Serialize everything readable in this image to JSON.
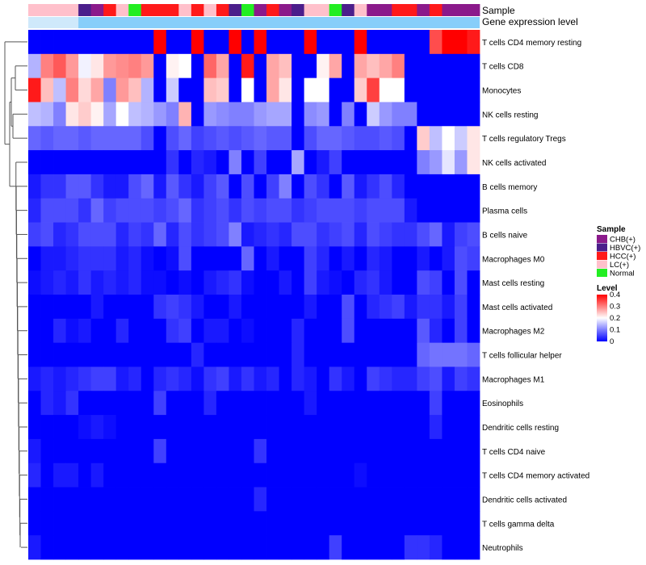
{
  "chart_data": {
    "type": "heatmap",
    "title": "",
    "annotation_tracks": [
      "Sample",
      "Gene expression level"
    ],
    "sample_groups": {
      "CHB(+)": "#8b1a8b",
      "HBVC(+)": "#4b1e8b",
      "HCC(+)": "#ff1a1a",
      "LC(+)": "#ffc0cb",
      "Normal": "#22ee22"
    },
    "sample_annotation": [
      "LC(+)",
      "LC(+)",
      "LC(+)",
      "LC(+)",
      "HBVC(+)",
      "CHB(+)",
      "HCC(+)",
      "LC(+)",
      "Normal",
      "HCC(+)",
      "HCC(+)",
      "HCC(+)",
      "LC(+)",
      "HCC(+)",
      "LC(+)",
      "HCC(+)",
      "HBVC(+)",
      "Normal",
      "CHB(+)",
      "HCC(+)",
      "CHB(+)",
      "HBVC(+)",
      "LC(+)",
      "LC(+)",
      "Normal",
      "HBVC(+)",
      "LC(+)",
      "CHB(+)",
      "CHB(+)",
      "HCC(+)",
      "HCC(+)",
      "CHB(+)",
      "HCC(+)",
      "CHB(+)",
      "CHB(+)",
      "CHB(+)"
    ],
    "level_color": "#87cefa",
    "row_labels": [
      "T cells CD4 memory resting",
      "T cells CD8",
      "Monocytes",
      "NK cells resting",
      "T cells regulatory  Tregs",
      "NK cells activated",
      "B cells memory",
      "Plasma cells",
      "B cells naive",
      "Macrophages M0",
      "Mast cells resting",
      "Mast cells activated",
      "Macrophages M2",
      "T cells follicular helper",
      "Macrophages M1",
      "Eosinophils",
      "Dendritic cells resting",
      "T cells CD4 naive",
      "T cells CD4 memory activated",
      "Dendritic cells activated",
      "T cells gamma delta",
      "Neutrophils"
    ],
    "values": [
      [
        0.0,
        0.0,
        0.0,
        0.0,
        0.0,
        0.0,
        0.0,
        0.0,
        0.0,
        0.0,
        0.4,
        0.0,
        0.0,
        0.4,
        0.0,
        0.0,
        0.4,
        0.0,
        0.4,
        0.0,
        0.0,
        0.0,
        0.4,
        0.0,
        0.0,
        0.0,
        0.4,
        0.0,
        0.0,
        0.0,
        0.0,
        0.0,
        0.34,
        0.4,
        0.4,
        0.38
      ],
      [
        0.14,
        0.3,
        0.33,
        0.28,
        0.19,
        0.22,
        0.28,
        0.29,
        0.3,
        0.28,
        0.0,
        0.21,
        0.2,
        0.0,
        0.32,
        0.27,
        0.0,
        0.38,
        0.0,
        0.27,
        0.25,
        0.0,
        0.0,
        0.21,
        0.27,
        0.0,
        0.27,
        0.25,
        0.27,
        0.3,
        0.0,
        0.0,
        0.0,
        0.0,
        0.0,
        0.0
      ],
      [
        0.38,
        0.25,
        0.15,
        0.3,
        0.23,
        0.27,
        0.1,
        0.28,
        0.25,
        0.14,
        0.0,
        0.16,
        0.0,
        0.0,
        0.25,
        0.24,
        0.0,
        0.2,
        0.0,
        0.27,
        0.22,
        0.0,
        0.2,
        0.2,
        0.0,
        0.0,
        0.24,
        0.35,
        0.2,
        0.2,
        0.0,
        0.0,
        0.0,
        0.0,
        0.0,
        0.0
      ],
      [
        0.15,
        0.14,
        0.1,
        0.22,
        0.24,
        0.21,
        0.13,
        0.2,
        0.15,
        0.14,
        0.12,
        0.1,
        0.26,
        0.0,
        0.12,
        0.11,
        0.1,
        0.1,
        0.12,
        0.13,
        0.13,
        0.0,
        0.11,
        0.12,
        0.0,
        0.1,
        0.0,
        0.16,
        0.12,
        0.1,
        0.1,
        0.0,
        0.0,
        0.0,
        0.0,
        0.0
      ],
      [
        0.08,
        0.07,
        0.08,
        0.08,
        0.07,
        0.08,
        0.08,
        0.08,
        0.08,
        0.06,
        0.0,
        0.06,
        0.08,
        0.05,
        0.06,
        0.07,
        0.06,
        0.07,
        0.08,
        0.07,
        0.07,
        0.0,
        0.06,
        0.08,
        0.08,
        0.07,
        0.06,
        0.06,
        0.07,
        0.06,
        0.0,
        0.24,
        0.15,
        0.2,
        0.16,
        0.22
      ],
      [
        0.0,
        0.0,
        0.0,
        0.0,
        0.0,
        0.0,
        0.0,
        0.0,
        0.0,
        0.0,
        0.0,
        0.04,
        0.0,
        0.03,
        0.02,
        0.0,
        0.1,
        0.0,
        0.05,
        0.0,
        0.0,
        0.13,
        0.0,
        0.02,
        0.05,
        0.0,
        0.0,
        0.0,
        0.0,
        0.0,
        0.0,
        0.1,
        0.12,
        0.18,
        0.12,
        0.22
      ],
      [
        0.02,
        0.04,
        0.04,
        0.07,
        0.07,
        0.04,
        0.02,
        0.02,
        0.06,
        0.08,
        0.02,
        0.07,
        0.04,
        0.02,
        0.05,
        0.07,
        0.0,
        0.06,
        0.0,
        0.05,
        0.1,
        0.0,
        0.06,
        0.04,
        0.0,
        0.07,
        0.02,
        0.04,
        0.06,
        0.03,
        0.0,
        0.0,
        0.0,
        0.0,
        0.0,
        0.0
      ],
      [
        0.03,
        0.06,
        0.06,
        0.06,
        0.04,
        0.08,
        0.05,
        0.06,
        0.06,
        0.06,
        0.05,
        0.06,
        0.08,
        0.04,
        0.05,
        0.06,
        0.04,
        0.06,
        0.05,
        0.06,
        0.06,
        0.04,
        0.05,
        0.06,
        0.06,
        0.06,
        0.05,
        0.06,
        0.06,
        0.06,
        0.02,
        0.0,
        0.0,
        0.0,
        0.0,
        0.0
      ],
      [
        0.05,
        0.06,
        0.03,
        0.04,
        0.06,
        0.06,
        0.06,
        0.03,
        0.05,
        0.04,
        0.08,
        0.03,
        0.06,
        0.04,
        0.05,
        0.06,
        0.1,
        0.02,
        0.03,
        0.04,
        0.03,
        0.06,
        0.06,
        0.04,
        0.05,
        0.06,
        0.03,
        0.06,
        0.05,
        0.04,
        0.04,
        0.06,
        0.08,
        0.02,
        0.05,
        0.06
      ],
      [
        0.0,
        0.02,
        0.02,
        0.03,
        0.04,
        0.04,
        0.04,
        0.02,
        0.03,
        0.01,
        0.0,
        0.01,
        0.06,
        0.0,
        0.0,
        0.0,
        0.0,
        0.08,
        0.0,
        0.02,
        0.0,
        0.0,
        0.05,
        0.03,
        0.0,
        0.02,
        0.0,
        0.03,
        0.02,
        0.0,
        0.0,
        0.02,
        0.0,
        0.02,
        0.06,
        0.05
      ],
      [
        0.01,
        0.02,
        0.03,
        0.02,
        0.04,
        0.02,
        0.03,
        0.02,
        0.03,
        0.01,
        0.01,
        0.0,
        0.01,
        0.0,
        0.02,
        0.03,
        0.04,
        0.01,
        0.0,
        0.0,
        0.02,
        0.0,
        0.05,
        0.02,
        0.01,
        0.0,
        0.03,
        0.04,
        0.02,
        0.0,
        0.0,
        0.06,
        0.05,
        0.0,
        0.06,
        0.0
      ],
      [
        0.0,
        0.0,
        0.0,
        0.0,
        0.0,
        0.02,
        0.0,
        0.0,
        0.0,
        0.0,
        0.04,
        0.05,
        0.04,
        0.02,
        0.0,
        0.0,
        0.02,
        0.0,
        0.0,
        0.0,
        0.0,
        0.0,
        0.02,
        0.0,
        0.0,
        0.06,
        0.0,
        0.03,
        0.04,
        0.05,
        0.02,
        0.04,
        0.04,
        0.02,
        0.05,
        0.0
      ],
      [
        0.0,
        0.0,
        0.03,
        0.01,
        0.02,
        0.0,
        0.0,
        0.03,
        0.0,
        0.0,
        0.0,
        0.04,
        0.05,
        0.0,
        0.02,
        0.02,
        0.0,
        0.01,
        0.0,
        0.0,
        0.0,
        0.03,
        0.0,
        0.0,
        0.0,
        0.06,
        0.0,
        0.0,
        0.0,
        0.0,
        0.0,
        0.07,
        0.03,
        0.0,
        0.05,
        0.0
      ],
      [
        0.0,
        0.0,
        0.0,
        0.0,
        0.0,
        0.0,
        0.0,
        0.0,
        0.0,
        0.0,
        0.0,
        0.0,
        0.0,
        0.03,
        0.0,
        0.0,
        0.0,
        0.0,
        0.0,
        0.0,
        0.0,
        0.03,
        0.0,
        0.0,
        0.0,
        0.0,
        0.0,
        0.0,
        0.0,
        0.0,
        0.0,
        0.08,
        0.09,
        0.09,
        0.09,
        0.08
      ],
      [
        0.02,
        0.03,
        0.02,
        0.03,
        0.04,
        0.05,
        0.05,
        0.02,
        0.03,
        0.0,
        0.03,
        0.04,
        0.03,
        0.01,
        0.04,
        0.05,
        0.02,
        0.04,
        0.02,
        0.03,
        0.0,
        0.03,
        0.02,
        0.0,
        0.04,
        0.02,
        0.0,
        0.05,
        0.04,
        0.03,
        0.03,
        0.05,
        0.06,
        0.02,
        0.05,
        0.04
      ],
      [
        0.0,
        0.03,
        0.02,
        0.04,
        0.0,
        0.0,
        0.0,
        0.0,
        0.0,
        0.0,
        0.05,
        0.0,
        0.0,
        0.0,
        0.03,
        0.0,
        0.0,
        0.0,
        0.0,
        0.0,
        0.0,
        0.0,
        0.02,
        0.0,
        0.0,
        0.0,
        0.0,
        0.0,
        0.0,
        0.0,
        0.0,
        0.0,
        0.05,
        0.0,
        0.0,
        0.0
      ],
      [
        0.0,
        0.0,
        0.0,
        0.0,
        0.01,
        0.02,
        0.01,
        0.0,
        0.0,
        0.0,
        0.0,
        0.0,
        0.0,
        0.0,
        0.0,
        0.0,
        0.0,
        0.0,
        0.0,
        0.0,
        0.0,
        0.0,
        0.0,
        0.0,
        0.0,
        0.0,
        0.0,
        0.0,
        0.0,
        0.0,
        0.0,
        0.0,
        0.03,
        0.0,
        0.0,
        0.0
      ],
      [
        0.02,
        0.0,
        0.0,
        0.0,
        0.0,
        0.0,
        0.0,
        0.0,
        0.0,
        0.0,
        0.05,
        0.0,
        0.0,
        0.0,
        0.0,
        0.0,
        0.0,
        0.0,
        0.04,
        0.0,
        0.0,
        0.0,
        0.0,
        0.0,
        0.0,
        0.0,
        0.0,
        0.0,
        0.0,
        0.0,
        0.0,
        0.0,
        0.0,
        0.0,
        0.0,
        0.0
      ],
      [
        0.03,
        0.0,
        0.02,
        0.02,
        0.0,
        0.02,
        0.0,
        0.0,
        0.0,
        0.0,
        0.0,
        0.0,
        0.0,
        0.0,
        0.0,
        0.0,
        0.0,
        0.0,
        0.0,
        0.0,
        0.0,
        0.0,
        0.0,
        0.0,
        0.0,
        0.0,
        0.01,
        0.0,
        0.0,
        0.0,
        0.0,
        0.0,
        0.0,
        0.0,
        0.0,
        0.0
      ],
      [
        0.0,
        0.0,
        0.0,
        0.0,
        0.0,
        0.0,
        0.0,
        0.0,
        0.0,
        0.0,
        0.0,
        0.0,
        0.0,
        0.0,
        0.0,
        0.0,
        0.0,
        0.0,
        0.03,
        0.0,
        0.0,
        0.0,
        0.0,
        0.0,
        0.0,
        0.0,
        0.0,
        0.0,
        0.0,
        0.0,
        0.0,
        0.0,
        0.0,
        0.0,
        0.0,
        0.0
      ],
      [
        0.0,
        0.0,
        0.0,
        0.0,
        0.0,
        0.0,
        0.0,
        0.0,
        0.0,
        0.0,
        0.0,
        0.0,
        0.0,
        0.0,
        0.0,
        0.0,
        0.0,
        0.0,
        0.0,
        0.0,
        0.0,
        0.0,
        0.0,
        0.0,
        0.0,
        0.0,
        0.0,
        0.0,
        0.0,
        0.0,
        0.0,
        0.0,
        0.0,
        0.0,
        0.0,
        0.0
      ],
      [
        0.02,
        0.0,
        0.0,
        0.0,
        0.0,
        0.0,
        0.0,
        0.0,
        0.0,
        0.0,
        0.0,
        0.0,
        0.0,
        0.0,
        0.0,
        0.0,
        0.0,
        0.0,
        0.0,
        0.0,
        0.0,
        0.0,
        0.0,
        0.0,
        0.05,
        0.0,
        0.0,
        0.0,
        0.0,
        0.0,
        0.04,
        0.04,
        0.03,
        0.0,
        0.0,
        0.0
      ]
    ],
    "legend": {
      "sample_title": "Sample",
      "sample_entries": [
        "CHB(+)",
        "HBVC(+)",
        "HCC(+)",
        "LC(+)",
        "Normal"
      ],
      "level_title": "Level",
      "level_ticks": [
        "0.4",
        "0.3",
        "0.2",
        "0.1",
        "0"
      ],
      "level_tick_values": [
        0.4,
        0.3,
        0.2,
        0.1,
        0
      ],
      "level_range": [
        0,
        0.4
      ],
      "colormap": [
        "#0000ff",
        "#ffffff",
        "#ff0000"
      ],
      "placement": "right"
    }
  }
}
